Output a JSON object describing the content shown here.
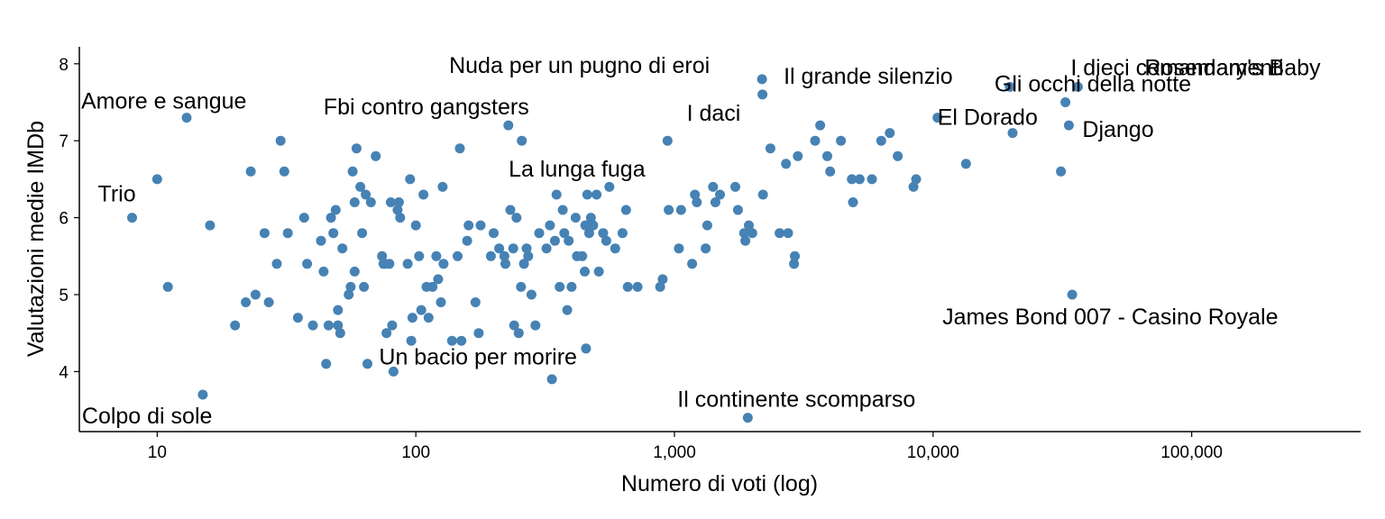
{
  "chart_data": {
    "type": "scatter",
    "title": "",
    "xlabel": "Numero di voti (log)",
    "ylabel": "Valutazioni medie IMDb",
    "x_scale": "log10",
    "xlim": [
      5,
      450000
    ],
    "ylim": [
      3.22,
      8.22
    ],
    "x_ticks": [
      10,
      100,
      1000,
      10000,
      100000
    ],
    "x_tick_labels": [
      "10",
      "100",
      "1,000",
      "10,000",
      "100,000"
    ],
    "y_ticks": [
      4,
      5,
      6,
      7,
      8
    ],
    "y_tick_labels": [
      "4",
      "5",
      "6",
      "7",
      "8"
    ],
    "grid": false,
    "legend": "none",
    "point_color": "#4682B4",
    "points": [
      [
        8,
        6.0
      ],
      [
        10,
        6.5
      ],
      [
        11,
        5.1
      ],
      [
        13,
        7.3
      ],
      [
        15,
        3.7
      ],
      [
        16,
        5.9
      ],
      [
        20,
        4.6
      ],
      [
        22,
        4.9
      ],
      [
        23,
        6.6
      ],
      [
        24,
        5.0
      ],
      [
        26,
        5.8
      ],
      [
        27,
        4.9
      ],
      [
        29,
        5.4
      ],
      [
        30,
        7.0
      ],
      [
        31,
        6.6
      ],
      [
        32,
        5.8
      ],
      [
        35,
        4.7
      ],
      [
        37,
        6.0
      ],
      [
        38,
        5.4
      ],
      [
        40,
        4.6
      ],
      [
        43,
        5.7
      ],
      [
        44,
        5.3
      ],
      [
        45,
        4.1
      ],
      [
        46,
        4.6
      ],
      [
        47,
        6.0
      ],
      [
        48,
        5.8
      ],
      [
        49,
        6.1
      ],
      [
        50,
        4.8
      ],
      [
        50,
        4.6
      ],
      [
        51,
        4.5
      ],
      [
        52,
        5.6
      ],
      [
        55,
        5.0
      ],
      [
        56,
        5.1
      ],
      [
        57,
        6.6
      ],
      [
        58,
        5.3
      ],
      [
        58,
        6.2
      ],
      [
        59,
        6.9
      ],
      [
        61,
        6.4
      ],
      [
        62,
        5.8
      ],
      [
        63,
        5.1
      ],
      [
        64,
        6.3
      ],
      [
        65,
        4.1
      ],
      [
        67,
        6.2
      ],
      [
        70,
        6.8
      ],
      [
        74,
        5.5
      ],
      [
        75,
        5.4
      ],
      [
        76,
        5.4
      ],
      [
        77,
        4.5
      ],
      [
        79,
        5.4
      ],
      [
        80,
        6.2
      ],
      [
        81,
        4.6
      ],
      [
        82,
        4.0
      ],
      [
        85,
        6.1
      ],
      [
        86,
        6.2
      ],
      [
        87,
        6.0
      ],
      [
        93,
        5.4
      ],
      [
        95,
        6.5
      ],
      [
        96,
        4.4
      ],
      [
        97,
        4.7
      ],
      [
        100,
        5.9
      ],
      [
        103,
        5.5
      ],
      [
        105,
        4.8
      ],
      [
        107,
        6.3
      ],
      [
        110,
        5.1
      ],
      [
        112,
        4.7
      ],
      [
        116,
        5.1
      ],
      [
        120,
        5.5
      ],
      [
        122,
        5.2
      ],
      [
        125,
        4.9
      ],
      [
        127,
        6.4
      ],
      [
        128,
        5.4
      ],
      [
        138,
        4.4
      ],
      [
        145,
        5.5
      ],
      [
        148,
        6.9
      ],
      [
        150,
        4.4
      ],
      [
        158,
        5.7
      ],
      [
        160,
        5.9
      ],
      [
        170,
        4.9
      ],
      [
        175,
        4.5
      ],
      [
        178,
        5.9
      ],
      [
        195,
        5.5
      ],
      [
        200,
        5.8
      ],
      [
        210,
        5.6
      ],
      [
        220,
        5.5
      ],
      [
        222,
        5.4
      ],
      [
        228,
        7.2
      ],
      [
        232,
        6.1
      ],
      [
        238,
        5.6
      ],
      [
        240,
        4.6
      ],
      [
        245,
        6.0
      ],
      [
        250,
        4.5
      ],
      [
        255,
        5.1
      ],
      [
        257,
        7.0
      ],
      [
        262,
        5.4
      ],
      [
        268,
        5.6
      ],
      [
        272,
        5.5
      ],
      [
        280,
        5.0
      ],
      [
        290,
        4.6
      ],
      [
        300,
        5.8
      ],
      [
        320,
        5.6
      ],
      [
        330,
        5.9
      ],
      [
        336,
        3.9
      ],
      [
        345,
        5.7
      ],
      [
        350,
        6.3
      ],
      [
        360,
        5.1
      ],
      [
        370,
        6.1
      ],
      [
        375,
        5.8
      ],
      [
        385,
        4.8
      ],
      [
        390,
        5.7
      ],
      [
        400,
        5.1
      ],
      [
        415,
        6.0
      ],
      [
        420,
        5.5
      ],
      [
        440,
        5.5
      ],
      [
        450,
        5.3
      ],
      [
        452,
        5.9
      ],
      [
        455,
        4.3
      ],
      [
        460,
        6.3
      ],
      [
        468,
        5.8
      ],
      [
        475,
        6.0
      ],
      [
        485,
        5.9
      ],
      [
        500,
        6.3
      ],
      [
        510,
        5.3
      ],
      [
        530,
        5.8
      ],
      [
        545,
        5.7
      ],
      [
        560,
        6.4
      ],
      [
        590,
        5.6
      ],
      [
        630,
        5.8
      ],
      [
        650,
        6.1
      ],
      [
        660,
        5.1
      ],
      [
        720,
        5.1
      ],
      [
        880,
        5.1
      ],
      [
        900,
        5.2
      ],
      [
        940,
        7.0
      ],
      [
        950,
        6.1
      ],
      [
        1040,
        5.6
      ],
      [
        1060,
        6.1
      ],
      [
        1170,
        5.4
      ],
      [
        1200,
        6.3
      ],
      [
        1220,
        6.2
      ],
      [
        1320,
        5.6
      ],
      [
        1340,
        5.9
      ],
      [
        1410,
        6.4
      ],
      [
        1440,
        6.2
      ],
      [
        1500,
        6.3
      ],
      [
        1720,
        6.4
      ],
      [
        1760,
        6.1
      ],
      [
        1860,
        5.8
      ],
      [
        1880,
        5.7
      ],
      [
        1920,
        3.4
      ],
      [
        1940,
        5.9
      ],
      [
        2000,
        5.8
      ],
      [
        2180,
        7.8
      ],
      [
        2190,
        7.6
      ],
      [
        2200,
        6.3
      ],
      [
        2350,
        6.9
      ],
      [
        2550,
        5.8
      ],
      [
        2700,
        6.7
      ],
      [
        2750,
        5.8
      ],
      [
        2900,
        5.4
      ],
      [
        2920,
        5.5
      ],
      [
        3000,
        6.8
      ],
      [
        3500,
        7.0
      ],
      [
        3660,
        7.2
      ],
      [
        3900,
        6.8
      ],
      [
        4000,
        6.6
      ],
      [
        4400,
        7.0
      ],
      [
        4850,
        6.5
      ],
      [
        4900,
        6.2
      ],
      [
        5200,
        6.5
      ],
      [
        5800,
        6.5
      ],
      [
        6300,
        7.0
      ],
      [
        6800,
        7.1
      ],
      [
        7300,
        6.8
      ],
      [
        8400,
        6.4
      ],
      [
        8600,
        6.5
      ],
      [
        10400,
        7.3
      ],
      [
        13400,
        6.7
      ],
      [
        19800,
        7.7
      ],
      [
        20300,
        7.1
      ],
      [
        31200,
        6.6
      ],
      [
        32500,
        7.5
      ],
      [
        33500,
        7.2
      ],
      [
        34500,
        5.0
      ],
      [
        36300,
        7.7
      ]
    ],
    "annotations": [
      {
        "text": "Trio",
        "x": 8,
        "y": 6.0
      },
      {
        "text": "Amore e sangue",
        "x": 13,
        "y": 7.3
      },
      {
        "text": "Colpo di sole",
        "x": 15,
        "y": 3.7
      },
      {
        "text": "Un bacio per morire",
        "x": 82,
        "y": 4.0
      },
      {
        "text": "Fbi contro gangsters",
        "x": 228,
        "y": 7.2
      },
      {
        "text": "La lunga fuga",
        "x": 336,
        "y": 6.3
      },
      {
        "text": "Nuda per un pugno di eroi",
        "x": 2180,
        "y": 7.8
      },
      {
        "text": "I daci",
        "x": 2190,
        "y": 7.6
      },
      {
        "text": "Il continente scomparso",
        "x": 1920,
        "y": 3.4
      },
      {
        "text": "Il grande silenzio",
        "x": 2180,
        "y": 7.8
      },
      {
        "text": "El Dorado",
        "x": 10400,
        "y": 7.3
      },
      {
        "text": "Gli occhi della notte",
        "x": 19800,
        "y": 7.7
      },
      {
        "text": "I dieci comandamenti",
        "x": 36300,
        "y": 7.7
      },
      {
        "text": "Rosemary's Baby",
        "x": 36300,
        "y": 7.7
      },
      {
        "text": "Django",
        "x": 33500,
        "y": 7.2
      },
      {
        "text": "James Bond 007 - Casino Royale",
        "x": 34500,
        "y": 5.0
      }
    ]
  }
}
